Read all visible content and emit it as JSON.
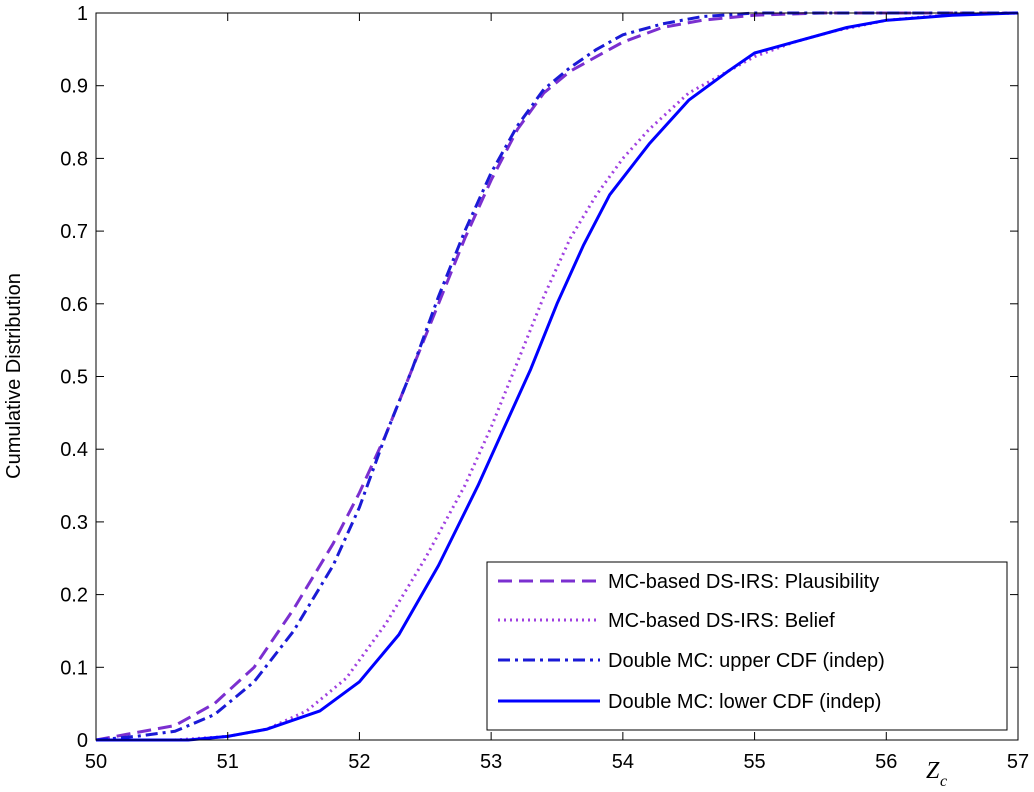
{
  "chart_data": {
    "type": "line",
    "xlabel_main": "Z",
    "xlabel_sub": "c",
    "ylabel": "Cumulative Distribution",
    "xlim": [
      50,
      57
    ],
    "ylim": [
      0,
      1
    ],
    "x_ticks": [
      "50",
      "51",
      "52",
      "53",
      "54",
      "55",
      "56",
      "57"
    ],
    "y_ticks": [
      "0",
      "0.1",
      "0.2",
      "0.3",
      "0.4",
      "0.5",
      "0.6",
      "0.7",
      "0.8",
      "0.9",
      "1"
    ],
    "grid": false,
    "legend_position": "bottom-right",
    "series": [
      {
        "name": "MC-based DS-IRS: Plausibility",
        "color": "#7B2FD0",
        "style": "dashed",
        "x": [
          50.0,
          50.3,
          50.6,
          50.9,
          51.2,
          51.5,
          51.8,
          52.0,
          52.2,
          52.4,
          52.6,
          52.8,
          53.0,
          53.2,
          53.4,
          53.6,
          53.8,
          54.0,
          54.3,
          54.6,
          55.0,
          55.5,
          56.0,
          56.5,
          57.0
        ],
        "y": [
          0.0,
          0.01,
          0.02,
          0.05,
          0.1,
          0.18,
          0.27,
          0.34,
          0.42,
          0.51,
          0.6,
          0.69,
          0.77,
          0.84,
          0.89,
          0.92,
          0.94,
          0.96,
          0.98,
          0.99,
          0.997,
          1.0,
          1.0,
          1.0,
          1.0
        ]
      },
      {
        "name": "MC-based DS-IRS: Belief",
        "color": "#A040E0",
        "style": "dotted",
        "x": [
          50.0,
          50.6,
          51.0,
          51.3,
          51.6,
          51.9,
          52.2,
          52.5,
          52.8,
          53.0,
          53.2,
          53.4,
          53.6,
          53.8,
          54.0,
          54.2,
          54.5,
          54.8,
          55.0,
          55.3,
          55.6,
          56.0,
          56.5,
          57.0
        ],
        "y": [
          0.0,
          0.0,
          0.005,
          0.015,
          0.04,
          0.085,
          0.16,
          0.25,
          0.35,
          0.43,
          0.52,
          0.61,
          0.69,
          0.75,
          0.8,
          0.84,
          0.89,
          0.92,
          0.94,
          0.96,
          0.975,
          0.99,
          0.998,
          1.0
        ]
      },
      {
        "name": "Double MC: upper CDF (indep)",
        "color": "#1A1AD6",
        "style": "dashdot",
        "x": [
          50.0,
          50.3,
          50.6,
          50.9,
          51.2,
          51.5,
          51.8,
          52.0,
          52.2,
          52.4,
          52.6,
          52.8,
          53.0,
          53.2,
          53.4,
          53.6,
          53.8,
          54.0,
          54.3,
          54.6,
          55.0,
          55.5,
          56.0,
          56.5,
          57.0
        ],
        "y": [
          0.0,
          0.005,
          0.012,
          0.035,
          0.08,
          0.15,
          0.24,
          0.32,
          0.42,
          0.51,
          0.61,
          0.7,
          0.78,
          0.845,
          0.895,
          0.925,
          0.95,
          0.97,
          0.985,
          0.995,
          1.0,
          1.0,
          1.0,
          1.0,
          1.0
        ]
      },
      {
        "name": "Double MC: lower CDF (indep)",
        "color": "#0000FF",
        "style": "solid",
        "x": [
          50.0,
          50.7,
          51.0,
          51.3,
          51.7,
          52.0,
          52.3,
          52.6,
          52.9,
          53.1,
          53.3,
          53.5,
          53.7,
          53.9,
          54.2,
          54.5,
          54.8,
          55.0,
          55.3,
          55.7,
          56.0,
          56.5,
          57.0
        ],
        "y": [
          0.0,
          0.0,
          0.005,
          0.015,
          0.04,
          0.08,
          0.145,
          0.24,
          0.35,
          0.43,
          0.51,
          0.6,
          0.68,
          0.75,
          0.82,
          0.88,
          0.92,
          0.945,
          0.96,
          0.98,
          0.99,
          0.997,
          1.0
        ]
      }
    ]
  }
}
